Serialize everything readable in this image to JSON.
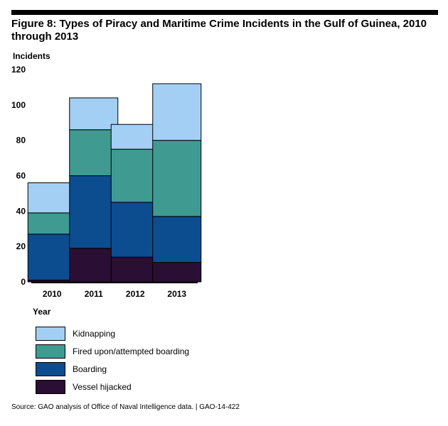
{
  "figure": {
    "title": "Figure 8: Types of Piracy and Maritime Crime Incidents in the Gulf of Guinea, 2010 through 2013",
    "source": "Source: GAO analysis of Office of Naval Intelligence data.  |  GAO-14-422"
  },
  "chart_data": {
    "type": "bar",
    "stacked": true,
    "title": "Figure 8: Types of Piracy and Maritime Crime Incidents in the Gulf of Guinea, 2010 through 2013",
    "xlabel": "Year",
    "ylabel": "Incidents",
    "categories": [
      "2010",
      "2011",
      "2012",
      "2013"
    ],
    "ylim": [
      0,
      120
    ],
    "yticks": [
      0,
      20,
      40,
      60,
      80,
      100,
      120
    ],
    "grid": false,
    "legend_position": "bottom",
    "series": [
      {
        "name": "Vessel hijacked",
        "values": [
          1,
          19,
          14,
          11
        ],
        "color": "#2a0e33"
      },
      {
        "name": "Boarding",
        "values": [
          26,
          41,
          31,
          26
        ],
        "color": "#0b4d8f"
      },
      {
        "name": "Fired upon/attempted boarding",
        "values": [
          12,
          26,
          30,
          43
        ],
        "color": "#3f9a92"
      },
      {
        "name": "Kidnapping",
        "values": [
          17,
          18,
          14,
          32
        ],
        "color": "#a4cff5"
      }
    ],
    "legend_order": [
      3,
      2,
      1,
      0
    ]
  }
}
